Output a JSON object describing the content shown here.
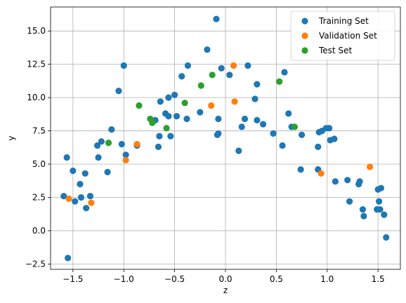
{
  "chart_data": {
    "type": "scatter",
    "xlabel": "z",
    "ylabel": "y",
    "xlim": [
      -1.72,
      1.72
    ],
    "ylim": [
      -2.9,
      16.8
    ],
    "xticks": [
      -1.5,
      -1.0,
      -0.5,
      0.0,
      0.5,
      1.0,
      1.5
    ],
    "xtick_labels": [
      "−1.5",
      "−1.0",
      "−0.5",
      "0.0",
      "0.5",
      "1.0",
      "1.5"
    ],
    "yticks": [
      -2.5,
      0.0,
      2.5,
      5.0,
      7.5,
      10.0,
      12.5,
      15.0
    ],
    "ytick_labels": [
      "−2.5",
      "0.0",
      "2.5",
      "5.0",
      "7.5",
      "10.0",
      "12.5",
      "15.0"
    ],
    "grid": true,
    "legend": "top-right",
    "series": [
      {
        "name": "Training Set",
        "color": "#1f77b4",
        "points": [
          [
            -1.59,
            2.6
          ],
          [
            -1.56,
            5.5
          ],
          [
            -1.55,
            -2.05
          ],
          [
            -1.5,
            4.5
          ],
          [
            -1.48,
            2.2
          ],
          [
            -1.43,
            3.5
          ],
          [
            -1.42,
            2.5
          ],
          [
            -1.38,
            4.3
          ],
          [
            -1.37,
            1.7
          ],
          [
            -1.33,
            2.6
          ],
          [
            -1.26,
            6.4
          ],
          [
            -1.25,
            5.5
          ],
          [
            -1.22,
            6.7
          ],
          [
            -1.16,
            4.4
          ],
          [
            -1.12,
            7.6
          ],
          [
            -1.05,
            10.5
          ],
          [
            -1.02,
            6.5
          ],
          [
            -1.0,
            12.4
          ],
          [
            -0.98,
            5.7
          ],
          [
            -0.87,
            6.4
          ],
          [
            -0.69,
            8.3
          ],
          [
            -0.66,
            6.3
          ],
          [
            -0.65,
            7.1
          ],
          [
            -0.64,
            9.7
          ],
          [
            -0.59,
            8.8
          ],
          [
            -0.56,
            8.6
          ],
          [
            -0.56,
            10.0
          ],
          [
            -0.54,
            7.1
          ],
          [
            -0.5,
            10.2
          ],
          [
            -0.48,
            8.6
          ],
          [
            -0.43,
            11.6
          ],
          [
            -0.38,
            8.4
          ],
          [
            -0.37,
            12.4
          ],
          [
            -0.25,
            8.9
          ],
          [
            -0.18,
            13.6
          ],
          [
            -0.09,
            15.9
          ],
          [
            -0.08,
            7.2
          ],
          [
            -0.07,
            7.3
          ],
          [
            -0.07,
            8.4
          ],
          [
            -0.04,
            12.2
          ],
          [
            0.04,
            11.7
          ],
          [
            0.13,
            6.0
          ],
          [
            0.16,
            7.8
          ],
          [
            0.19,
            8.4
          ],
          [
            0.22,
            12.4
          ],
          [
            0.29,
            9.9
          ],
          [
            0.31,
            8.3
          ],
          [
            0.31,
            11.0
          ],
          [
            0.37,
            8.0
          ],
          [
            0.47,
            7.3
          ],
          [
            0.56,
            6.4
          ],
          [
            0.58,
            11.9
          ],
          [
            0.62,
            8.8
          ],
          [
            0.65,
            7.8
          ],
          [
            0.74,
            4.6
          ],
          [
            0.75,
            7.2
          ],
          [
            0.91,
            6.3
          ],
          [
            0.91,
            4.6
          ],
          [
            0.92,
            7.4
          ],
          [
            0.95,
            7.5
          ],
          [
            0.99,
            7.7
          ],
          [
            1.02,
            7.7
          ],
          [
            1.03,
            6.8
          ],
          [
            1.07,
            6.9
          ],
          [
            1.08,
            3.7
          ],
          [
            1.2,
            3.8
          ],
          [
            1.22,
            2.2
          ],
          [
            1.31,
            3.5
          ],
          [
            1.32,
            3.7
          ],
          [
            1.35,
            1.6
          ],
          [
            1.36,
            1.1
          ],
          [
            1.49,
            1.6
          ],
          [
            1.5,
            3.1
          ],
          [
            1.51,
            2.2
          ],
          [
            1.52,
            1.6
          ],
          [
            1.53,
            3.2
          ],
          [
            1.56,
            1.2
          ],
          [
            1.58,
            -0.5
          ]
        ]
      },
      {
        "name": "Validation Set",
        "color": "#ff7f0e",
        "points": [
          [
            -1.54,
            2.4
          ],
          [
            -1.32,
            2.1
          ],
          [
            -0.98,
            5.3
          ],
          [
            -0.87,
            6.5
          ],
          [
            -0.14,
            9.4
          ],
          [
            0.08,
            12.4
          ],
          [
            0.09,
            9.7
          ],
          [
            0.94,
            4.3
          ],
          [
            1.42,
            4.8
          ]
        ]
      },
      {
        "name": "Test Set",
        "color": "#2ca02c",
        "points": [
          [
            -1.15,
            6.6
          ],
          [
            -0.85,
            9.4
          ],
          [
            -0.74,
            8.4
          ],
          [
            -0.72,
            8.1
          ],
          [
            -0.58,
            7.7
          ],
          [
            -0.4,
            9.6
          ],
          [
            -0.24,
            10.9
          ],
          [
            -0.13,
            11.7
          ],
          [
            0.53,
            11.2
          ],
          [
            0.68,
            7.8
          ]
        ]
      }
    ]
  }
}
